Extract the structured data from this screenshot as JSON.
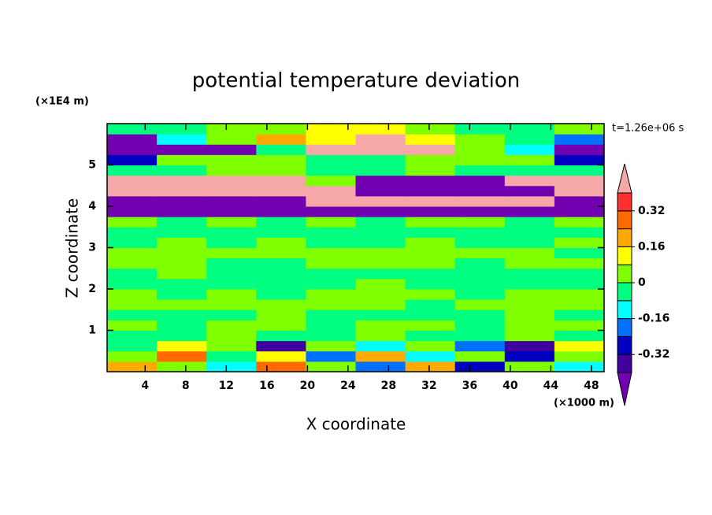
{
  "chart_data": {
    "type": "contour",
    "title": "potential temperature deviation",
    "x_label": "X coordinate",
    "y_label": "Z coordinate",
    "x_unit": "(×1000 m)",
    "y_unit": "(×1E4 m)",
    "time_label": "t=1.26e+06 s",
    "xlim": [
      0.25,
      49.25
    ],
    "ylim": [
      0,
      6
    ],
    "xticks": [
      4,
      8,
      12,
      16,
      20,
      24,
      28,
      32,
      36,
      40,
      44,
      48
    ],
    "yticks": [
      1,
      2,
      3,
      4,
      5
    ],
    "x": [
      2.7,
      7.6,
      12.5,
      17.4,
      22.3,
      27.2,
      32.1,
      37.0,
      41.9,
      46.8
    ],
    "z": [
      0.125,
      0.375,
      0.625,
      0.875,
      1.125,
      1.375,
      1.625,
      1.875,
      2.125,
      2.375,
      2.625,
      2.875,
      3.125,
      3.375,
      3.625,
      3.875,
      4.125,
      4.375,
      4.625,
      4.875,
      5.125,
      5.375,
      5.625,
      5.875
    ],
    "values": [
      [
        0.2,
        0.04,
        -0.12,
        0.28,
        0.04,
        -0.2,
        0.2,
        -0.28,
        0.04,
        -0.12
      ],
      [
        0.04,
        0.28,
        -0.04,
        0.12,
        -0.2,
        0.2,
        -0.12,
        0.04,
        -0.28,
        0.04
      ],
      [
        -0.04,
        0.12,
        0.04,
        -0.36,
        0.04,
        -0.12,
        0.04,
        -0.2,
        -0.36,
        0.12
      ],
      [
        -0.04,
        -0.04,
        0.04,
        -0.04,
        -0.04,
        0.04,
        -0.04,
        -0.04,
        0.04,
        -0.04
      ],
      [
        0.04,
        -0.04,
        0.04,
        0.04,
        -0.04,
        0.04,
        0.04,
        -0.04,
        0.04,
        0.04
      ],
      [
        -0.04,
        -0.04,
        -0.04,
        0.04,
        -0.04,
        -0.04,
        -0.04,
        -0.04,
        0.04,
        -0.04
      ],
      [
        0.04,
        0.04,
        0.04,
        0.04,
        0.04,
        0.04,
        -0.04,
        0.04,
        0.04,
        0.04
      ],
      [
        0.04,
        -0.04,
        0.04,
        -0.04,
        0.04,
        0.04,
        0.04,
        -0.04,
        0.04,
        0.04
      ],
      [
        -0.04,
        -0.04,
        -0.04,
        -0.04,
        -0.04,
        0.04,
        -0.04,
        -0.04,
        -0.04,
        -0.04
      ],
      [
        -0.04,
        0.04,
        -0.04,
        -0.04,
        -0.04,
        -0.04,
        -0.04,
        -0.04,
        -0.04,
        -0.04
      ],
      [
        0.04,
        0.04,
        -0.04,
        -0.04,
        0.04,
        0.04,
        0.04,
        -0.04,
        0.04,
        0.04
      ],
      [
        0.04,
        0.04,
        0.04,
        0.04,
        0.04,
        0.04,
        0.04,
        0.04,
        0.04,
        -0.04
      ],
      [
        -0.04,
        0.04,
        -0.04,
        0.04,
        -0.04,
        -0.04,
        0.04,
        -0.04,
        -0.04,
        0.04
      ],
      [
        -0.04,
        -0.04,
        -0.04,
        -0.04,
        -0.04,
        -0.04,
        -0.04,
        -0.04,
        -0.04,
        -0.04
      ],
      [
        0.04,
        -0.04,
        0.04,
        -0.04,
        0.04,
        -0.04,
        0.04,
        0.04,
        -0.04,
        0.04
      ],
      [
        -0.44,
        -0.44,
        -0.44,
        -0.44,
        -0.44,
        -0.44,
        -0.44,
        -0.44,
        -0.44,
        -0.44
      ],
      [
        -0.44,
        -0.44,
        -0.44,
        -0.44,
        0.44,
        0.44,
        0.44,
        0.44,
        0.44,
        -0.44
      ],
      [
        0.44,
        0.44,
        0.44,
        0.44,
        0.44,
        -0.44,
        -0.44,
        -0.44,
        -0.44,
        0.44
      ],
      [
        0.44,
        0.44,
        0.44,
        0.44,
        0.04,
        -0.44,
        -0.44,
        -0.44,
        0.44,
        0.44
      ],
      [
        -0.04,
        -0.04,
        0.04,
        0.04,
        -0.04,
        -0.04,
        0.04,
        -0.04,
        -0.04,
        -0.04
      ],
      [
        -0.28,
        0.04,
        0.04,
        0.04,
        -0.04,
        -0.04,
        0.04,
        0.04,
        0.04,
        -0.28
      ],
      [
        -0.44,
        -0.44,
        -0.44,
        -0.04,
        0.44,
        0.44,
        0.44,
        0.04,
        -0.12,
        -0.44
      ],
      [
        -0.44,
        -0.12,
        0.04,
        0.2,
        0.12,
        0.44,
        0.12,
        0.04,
        -0.04,
        -0.2
      ],
      [
        -0.04,
        -0.04,
        0.04,
        0.04,
        0.12,
        0.12,
        0.04,
        -0.04,
        -0.04,
        0.04
      ]
    ],
    "levels": [
      -0.4,
      -0.32,
      -0.24,
      -0.16,
      -0.08,
      0,
      0.08,
      0.16,
      0.24,
      0.32,
      0.4
    ],
    "colors": [
      "#7000b0",
      "#4000a0",
      "#0000c0",
      "#0070ff",
      "#00ffff",
      "#00ff80",
      "#80ff00",
      "#ffff00",
      "#ffaa00",
      "#ff6a00",
      "#ff3030",
      "#f6a8a8"
    ],
    "colorbar_ticks": [
      0.32,
      0.16,
      0,
      -0.16,
      -0.32
    ]
  }
}
